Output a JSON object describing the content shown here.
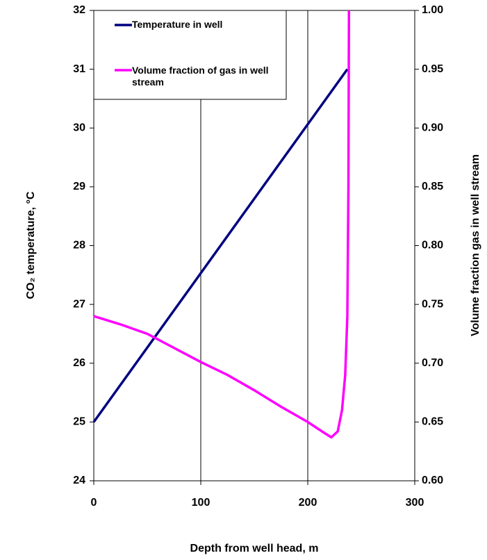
{
  "chart_data": {
    "type": "line",
    "x_label": "Depth from well head, m",
    "y_label": "CO₂ temperature, °C",
    "y2_label": "Volume fraction gas in well stream",
    "xlim": [
      0,
      300
    ],
    "xticks": [
      0,
      100,
      200,
      300
    ],
    "ylim": [
      24,
      32
    ],
    "yticks": [
      24,
      25,
      26,
      27,
      28,
      29,
      30,
      31,
      32
    ],
    "y2lim": [
      0.6,
      1.0
    ],
    "y2ticks": [
      {
        "value": 0.6,
        "label": "0.60"
      },
      0.65,
      {
        "value": 0.7,
        "label": "0.70"
      },
      0.75,
      {
        "value": 0.8,
        "label": "0.80"
      },
      0.85,
      {
        "value": 0.9,
        "label": "0.90"
      },
      0.95,
      {
        "value": 1.0,
        "label": "1.00"
      }
    ],
    "grid": "x",
    "legend": "upper left",
    "series": [
      {
        "name": "Temperature in well",
        "color": "#000080",
        "x": [
          0,
          237
        ],
        "values": [
          25,
          31
        ]
      },
      {
        "name": "Volume fraction of gas in well stream",
        "color": "#ff00ff",
        "axis": "y2",
        "x": [
          0,
          25,
          50,
          75,
          100,
          125,
          150,
          175,
          200,
          215,
          222,
          228,
          232,
          235,
          237,
          238,
          238.5
        ],
        "values": [
          0.74,
          0.733,
          0.725,
          0.713,
          0.701,
          0.69,
          0.677,
          0.663,
          0.65,
          0.641,
          0.637,
          0.642,
          0.66,
          0.69,
          0.74,
          0.85,
          1.0
        ]
      }
    ]
  }
}
